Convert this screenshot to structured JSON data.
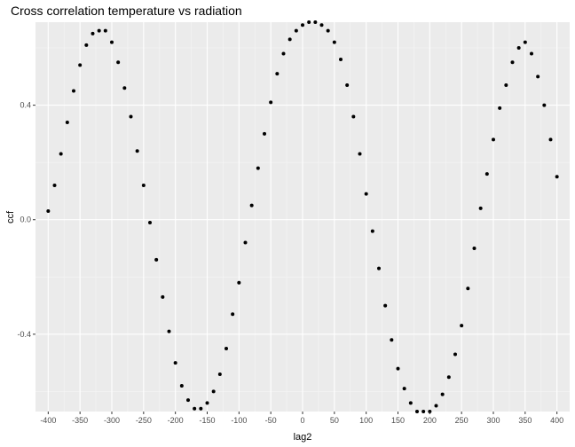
{
  "chart_data": {
    "type": "scatter",
    "title": "Cross correlation temperature vs radiation",
    "xlabel": "lag2",
    "ylabel": "ccf",
    "xlim": [
      -420,
      420
    ],
    "ylim": [
      -0.67,
      0.69
    ],
    "x_ticks": [
      -400,
      -350,
      -300,
      -250,
      -200,
      -150,
      -100,
      -50,
      0,
      50,
      100,
      150,
      200,
      250,
      300,
      350,
      400
    ],
    "x_tick_labels": [
      "-400",
      "-350",
      "-300",
      "-250",
      "-200",
      "-150",
      "-100",
      "-50",
      "0",
      "50",
      "100",
      "150",
      "200",
      "250",
      "300",
      "350",
      "400"
    ],
    "y_ticks": [
      -0.4,
      0.0,
      0.4
    ],
    "y_tick_labels": [
      "-0.4",
      "0.0",
      "0.4"
    ],
    "grid": true,
    "series": [
      {
        "x": [
          -400,
          -390,
          -380,
          -370,
          -360,
          -350,
          -340,
          -330,
          -320,
          -310,
          -300,
          -290,
          -280,
          -270,
          -260,
          -250,
          -240,
          -230,
          -220,
          -210,
          -200,
          -190,
          -180,
          -170,
          -160,
          -150,
          -140,
          -130,
          -120,
          -110,
          -100,
          -90,
          -80,
          -70,
          -60,
          -50,
          -40,
          -30,
          -20,
          -10,
          0,
          10,
          20,
          30,
          40,
          50,
          60,
          70,
          80,
          90,
          100,
          110,
          120,
          130,
          140,
          150,
          160,
          170,
          180,
          190,
          200,
          210,
          220,
          230,
          240,
          250,
          260,
          270,
          280,
          290,
          300,
          310,
          320,
          330,
          340,
          350,
          360,
          370,
          380,
          390,
          400
        ],
        "y": [
          0.03,
          0.12,
          0.23,
          0.34,
          0.45,
          0.54,
          0.61,
          0.65,
          0.66,
          0.66,
          0.62,
          0.55,
          0.46,
          0.36,
          0.24,
          0.12,
          -0.01,
          -0.14,
          -0.27,
          -0.39,
          -0.5,
          -0.58,
          -0.63,
          -0.66,
          -0.66,
          -0.64,
          -0.6,
          -0.54,
          -0.45,
          -0.33,
          -0.22,
          -0.08,
          0.05,
          0.18,
          0.3,
          0.41,
          0.51,
          0.58,
          0.63,
          0.66,
          0.68,
          0.69,
          0.69,
          0.68,
          0.66,
          0.62,
          0.56,
          0.47,
          0.36,
          0.23,
          0.09,
          -0.04,
          -0.17,
          -0.3,
          -0.42,
          -0.52,
          -0.59,
          -0.64,
          -0.67,
          -0.67,
          -0.67,
          -0.65,
          -0.61,
          -0.55,
          -0.47,
          -0.37,
          -0.24,
          -0.1,
          0.04,
          0.16,
          0.28,
          0.39,
          0.47,
          0.55,
          0.6,
          0.62,
          0.58,
          0.5,
          0.4,
          0.28,
          0.15
        ]
      }
    ]
  }
}
